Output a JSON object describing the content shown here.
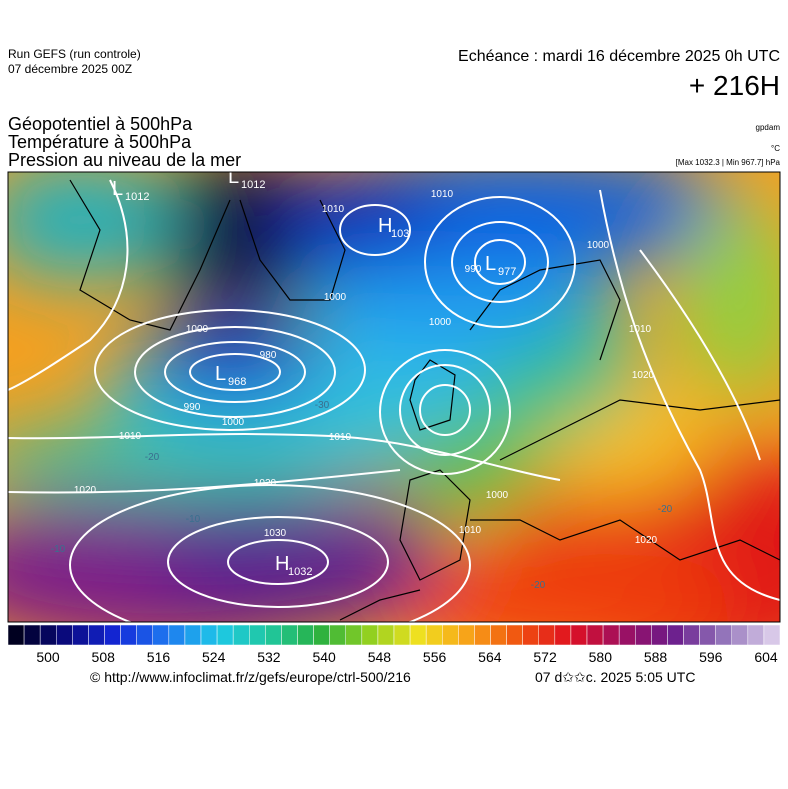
{
  "header": {
    "run": "Run GEFS (run controle)",
    "run_date": "07 décembre 2025 00Z",
    "valid": "Echéance : mardi 16 décembre 2025 0h UTC",
    "lead": "+ 216H"
  },
  "legend": {
    "lines": [
      "Géopotentiel à 500hPa",
      "Température à 500hPa",
      "Pression au niveau de la mer"
    ],
    "units": [
      "gpdam",
      "°C",
      "[Max 1032.3 | Min 967.7] hPa"
    ]
  },
  "map": {
    "centers": [
      {
        "kind": "L",
        "value": "1012"
      },
      {
        "kind": "L",
        "value": "1012"
      },
      {
        "kind": "H",
        "value": "103"
      },
      {
        "kind": "L",
        "value": "977"
      },
      {
        "kind": "L",
        "value": "968"
      },
      {
        "kind": "H",
        "value": "1032"
      }
    ],
    "isobar_labels": [
      "1010",
      "1010",
      "1000",
      "1000",
      "980",
      "990",
      "1000",
      "1010",
      "1020",
      "1020",
      "1010",
      "1030",
      "990",
      "1000",
      "1010",
      "1020",
      "1000",
      "1000",
      "1010",
      "1020"
    ],
    "temperature_labels": [
      "-30",
      "-20",
      "-10",
      "-10",
      "-20",
      "-20"
    ]
  },
  "colorbar": {
    "ticks": [
      500,
      508,
      516,
      524,
      532,
      540,
      548,
      556,
      564,
      572,
      580,
      588,
      596,
      604
    ]
  },
  "footer": {
    "url": "© http://www.infoclimat.fr/z/gefs/europe/ctrl-500/216",
    "timestamp": "07 d✩✩c. 2025  5:05 UTC"
  }
}
